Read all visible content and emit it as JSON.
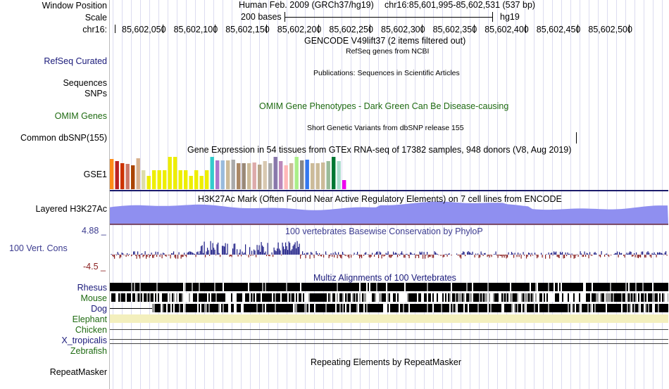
{
  "header": {
    "window_position_label": "Window Position",
    "scale_label": "Scale",
    "chrom_label": "chr16:",
    "assembly_text": "Human Feb. 2009 (GRCh37/hg19)",
    "position_text": "chr16:85,601,995-85,602,531 (537 bp)",
    "scale_text": "200 bases",
    "db_text": "hg19",
    "ruler_ticks": [
      "85,602,050",
      "85,602,100",
      "85,602,150",
      "85,602,200",
      "85,602,250",
      "85,602,300",
      "85,602,350",
      "85,602,400",
      "85,602,450",
      "85,602,500"
    ]
  },
  "tracks": {
    "gencode": {
      "title": "GENCODE V49lift37 (2 items filtered out)"
    },
    "refseq": {
      "label": "RefSeq Curated",
      "title": "RefSeq genes from NCBI",
      "color": "#1a1a7a"
    },
    "publications": {
      "label": "Sequences",
      "title": "Publications: Sequences in Scientific Articles"
    },
    "snps": {
      "label": "SNPs"
    },
    "omim": {
      "label": "OMIM Genes",
      "title": "OMIM Gene Phenotypes - Dark Green Can Be Disease-causing",
      "color": "#1f6b12"
    },
    "dbsnp": {
      "label": "Common dbSNP(155)",
      "title": "Short Genetic Variants from dbSNP release 155"
    },
    "gtex": {
      "label": "GSE1",
      "title": "Gene Expression in 54 tissues from GTEx RNA-seq of 17382 samples, 948 donors (V8, Aug 2019)",
      "bar_colors": [
        "#ff8c1a",
        "#bb2222",
        "#cc3300",
        "#cc7766",
        "#aa4400",
        "#d8b08c",
        "#ddddaa",
        "#eeee00",
        "#eeee00",
        "#eeee00",
        "#eeee00",
        "#eeee00",
        "#eeee00",
        "#eeee00",
        "#eeee00",
        "#eeee00",
        "#eeee00",
        "#eeee00",
        "#eeee00",
        "#33cccc",
        "#aa77cc",
        "#99bbdd",
        "#ccbb99",
        "#aaaaaa",
        "#aa8866",
        "#998877",
        "#ccbb99",
        "#ddaaaa",
        "#b8a68a",
        "#d8c8b0",
        "#aaaaaa",
        "#8877aa",
        "#bb88bb",
        "#ffb8b8",
        "#ccbb99",
        "#aaee88",
        "#888888",
        "#3377ee",
        "#ccbb99",
        "#ccbb99",
        "#ccbb99",
        "#99bb99",
        "#007733",
        "#aaddcc",
        "#ee00ee"
      ],
      "bar_levels": [
        0.92,
        0.85,
        0.78,
        0.76,
        0.72,
        0.93,
        0.57,
        0.4,
        0.57,
        0.57,
        0.57,
        0.98,
        0.98,
        0.57,
        0.57,
        0.4,
        0.57,
        0.4,
        0.57,
        0.98,
        0.87,
        0.87,
        0.87,
        0.9,
        0.78,
        0.78,
        0.78,
        0.8,
        0.75,
        0.85,
        0.78,
        0.97,
        0.85,
        0.72,
        0.78,
        0.97,
        0.87,
        0.9,
        0.78,
        0.78,
        0.8,
        0.85,
        0.98,
        0.85,
        0.28
      ]
    },
    "h3k27ac": {
      "label": "Layered H3K27Ac",
      "title": "H3K27Ac Mark (Often Found Near Active Regulatory Elements) on 7 cell lines from ENCODE"
    },
    "cons": {
      "label": "100 Vert. Cons",
      "title": "100 vertebrates Basewise Conservation by PhyloP",
      "max_label": "4.88 _",
      "min_label": "-4.5 _",
      "color": "#3b3b8f",
      "pos_color": "#1e1e86",
      "neg_color": "#8a1f1f"
    },
    "multiz": {
      "title": "Multiz Alignments of 100 Vertebrates",
      "species": [
        {
          "name": "Rhesus",
          "color": "#1a1a7a"
        },
        {
          "name": "Mouse",
          "color": "#1f6b12"
        },
        {
          "name": "Dog",
          "color": "#1a1a7a"
        },
        {
          "name": "Elephant",
          "color": "#1f6b12"
        },
        {
          "name": "Chicken",
          "color": "#1f6b12"
        },
        {
          "name": "X_tropicalis",
          "color": "#1a1a7a"
        },
        {
          "name": "Zebrafish",
          "color": "#1f6b12"
        }
      ]
    },
    "repeatmasker": {
      "label": "RepeatMasker",
      "title": "Repeating Elements by RepeatMasker"
    }
  }
}
